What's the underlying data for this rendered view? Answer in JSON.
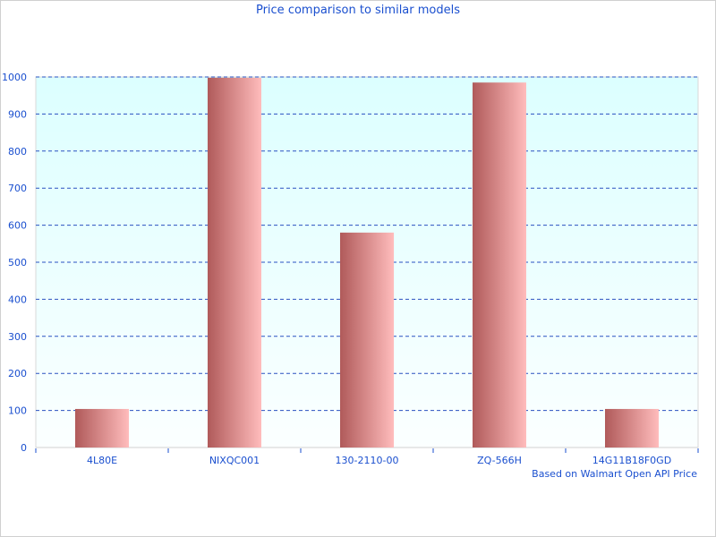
{
  "chart_data": {
    "type": "bar",
    "title": "Price comparison to similar models",
    "categories": [
      "4L80E",
      "NIXQC001",
      "130-2110-00",
      "ZQ-566H",
      "14G11B18F0GD"
    ],
    "values": [
      104,
      998,
      580,
      985,
      104
    ],
    "ylim": [
      0,
      1000
    ],
    "yticks": [
      0,
      100,
      200,
      300,
      400,
      500,
      600,
      700,
      800,
      900,
      1000
    ],
    "grid": true,
    "annotation": "Based on Walmart Open API Price",
    "colors": {
      "bar_dark": "#b05a5a",
      "bar_light": "#ffbcbc",
      "bg_top": "#dcffff",
      "bg_bottom": "#fbffff",
      "text": "#1a4fcf",
      "grid": "#2a50c0"
    }
  }
}
